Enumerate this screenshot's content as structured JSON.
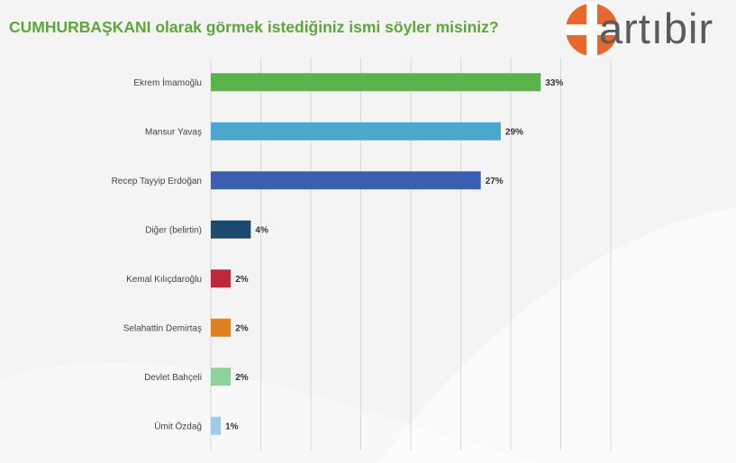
{
  "title": "CUMHURBAŞKANI olarak görmek istediğiniz ismi söyler misiniz?",
  "logo": {
    "text": "artıbir",
    "accent_color": "#e8672a",
    "text_color": "#5a5a5a"
  },
  "chart_data": {
    "type": "bar",
    "orientation": "horizontal",
    "xlim": [
      0,
      40
    ],
    "grid": true,
    "categories": [
      "Ekrem İmamoğlu",
      "Mansur Yavaş",
      "Recep Tayyip Erdoğan",
      "Diğer (belirtin)",
      "Kemal Kılıçdaroğlu",
      "Selahattin Demirtaş",
      "Devlet Bahçeli",
      "Ümit Özdağ"
    ],
    "values": [
      33,
      29,
      27,
      4,
      2,
      2,
      2,
      1
    ],
    "value_labels": [
      "33%",
      "29%",
      "27%",
      "4%",
      "2%",
      "2%",
      "2%",
      "1%"
    ],
    "colors": [
      "#5ab24a",
      "#4aa8cc",
      "#3a5fb0",
      "#1c4a6e",
      "#c0273a",
      "#d9821e",
      "#8fd19a",
      "#9ccbec"
    ]
  }
}
